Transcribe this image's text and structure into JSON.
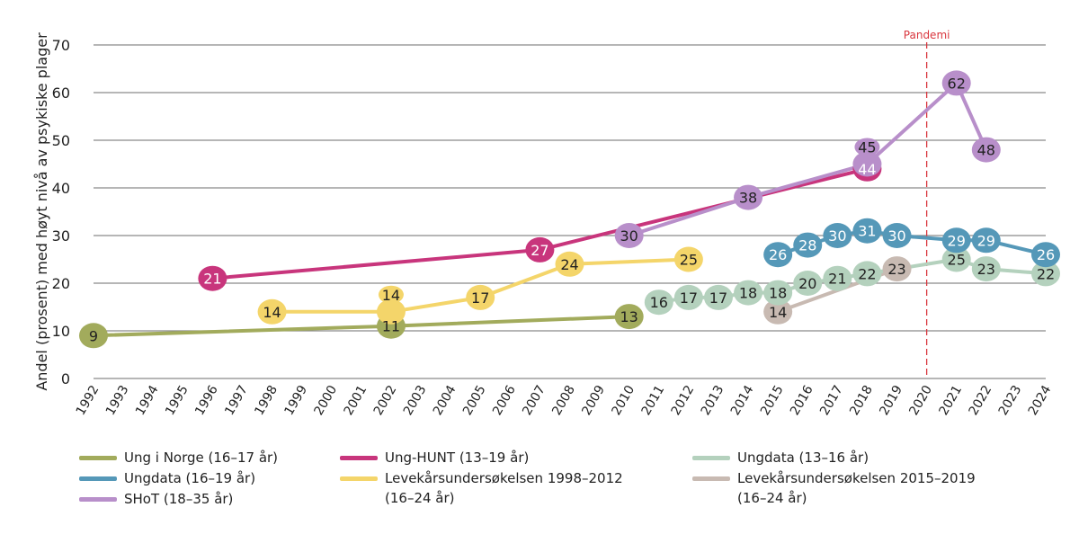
{
  "chart_data": {
    "type": "line",
    "ylabel": "Andel (prosent) med høyt nivå av psykiske plager",
    "xlabel": "",
    "ylim": [
      0,
      70
    ],
    "yticks": [
      0,
      10,
      20,
      30,
      40,
      50,
      60,
      70
    ],
    "xlim": [
      1992,
      2024
    ],
    "grid": true,
    "legend": "bottom",
    "annotation": {
      "label": "Pandemi",
      "x": 2020,
      "color": "#d9363e"
    },
    "series": [
      {
        "name": "Ung i Norge (16–17 år)",
        "color": "#a2ab5c",
        "text": "#222",
        "x": [
          1992,
          2002,
          2010
        ],
        "y": [
          9,
          11,
          13
        ]
      },
      {
        "name": "Ung-HUNT (13–19 år)",
        "color": "#c8357c",
        "text": "#fff",
        "x": [
          1996,
          2007,
          2018
        ],
        "y": [
          21,
          27,
          44
        ]
      },
      {
        "name": "Ungdata (13–16 år)",
        "color": "#b4d1bd",
        "text": "#222",
        "x": [
          2011,
          2012,
          2013,
          2014,
          2015,
          2016,
          2017,
          2018,
          2021,
          2022,
          2024
        ],
        "y": [
          16,
          17,
          17,
          18,
          18,
          20,
          21,
          22,
          25,
          23,
          22
        ]
      },
      {
        "name": "Ungdata (16–19 år)",
        "color": "#5598b8",
        "text": "#fff",
        "x": [
          2015,
          2016,
          2017,
          2018,
          2019,
          2021,
          2022,
          2024
        ],
        "y": [
          26,
          28,
          30,
          31,
          30,
          29,
          29,
          26
        ]
      },
      {
        "name": "Levekårsundersøkelsen 1998–2012 (16–24 år)",
        "color": "#f4d56a",
        "text": "#222",
        "x": [
          1998,
          2002,
          2005,
          2008,
          2012
        ],
        "y": [
          14,
          14,
          17,
          24,
          25
        ]
      },
      {
        "name": "Levekårsundersøkelsen 2015–2019 (16–24 år)",
        "color": "#c8bab2",
        "text": "#222",
        "x": [
          2015,
          2019
        ],
        "y": [
          14,
          23
        ]
      },
      {
        "name": "SHoT (18–35 år)",
        "color": "#b88fca",
        "text": "#222",
        "x": [
          2010,
          2014,
          2018,
          2021,
          2022
        ],
        "y": [
          30,
          38,
          45,
          62,
          48
        ]
      }
    ]
  },
  "legend": {
    "items": [
      {
        "line1": "Ung i Norge (16–17 år)",
        "line2": ""
      },
      {
        "line1": "Ung-HUNT (13–19 år)",
        "line2": ""
      },
      {
        "line1": "Ungdata (13–16 år)",
        "line2": ""
      },
      {
        "line1": "Ungdata (16–19 år)",
        "line2": ""
      },
      {
        "line1": "Levekårsundersøkelsen 1998–2012",
        "line2": "(16–24 år)"
      },
      {
        "line1": "Levekårsundersøkelsen 2015–2019",
        "line2": "(16–24 år)"
      },
      {
        "line1": "SHoT (18–35 år)",
        "line2": ""
      }
    ]
  }
}
